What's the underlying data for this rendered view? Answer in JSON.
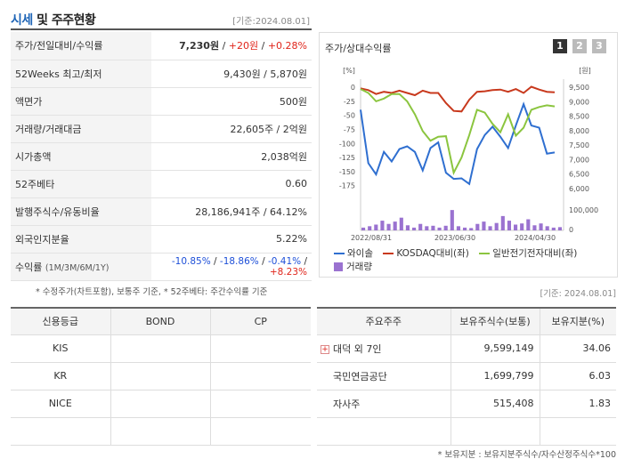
{
  "header": {
    "title_a": "시세",
    "title_b": "및",
    "title_c": "주주현황",
    "date": "[기준:2024.08.01]"
  },
  "summary": {
    "price_label": "주가/전일대비/수익률",
    "price": "7,230원",
    "change": "+20원",
    "change_pct": "+0.28%",
    "week52_label": "52Weeks 최고/최저",
    "week52": "9,430원 / 5,870원",
    "face_label": "액면가",
    "face": "500원",
    "volume_label": "거래량/거래대금",
    "volume": "22,605주 / 2억원",
    "mcap_label": "시가총액",
    "mcap": "2,038억원",
    "beta_label": "52주베타",
    "beta": "0.60",
    "shares_label": "발행주식수/유동비율",
    "shares": "28,186,941주 / 64.12%",
    "foreign_label": "외국인지분율",
    "foreign": "5.22%",
    "return_label": "수익률",
    "return_periods": "(1M/3M/6M/1Y)",
    "r1m": "-10.85%",
    "r3m": "-18.86%",
    "r6m": "-0.41%",
    "r1y": "+8.23%"
  },
  "notes": {
    "note1": "* 수정주가(차트포함), 보통주 기준, * 52주베타: 주간수익률 기준",
    "note2": "[기준: 2024.08.01]",
    "note3": "* 보유지분 : 보유지분주식수/자수산정주식수*100"
  },
  "chart": {
    "title": "주가/상대수익률",
    "pages": [
      "1",
      "2",
      "3"
    ],
    "left_unit": "[%]",
    "right_unit": "[원]",
    "legend": [
      "와이솔",
      "KOSDAQ대비(좌)",
      "일반전기전자대비(좌)",
      "거래량"
    ],
    "colors": {
      "stock": "#2f6fd0",
      "kosdaq": "#c8391d",
      "sector": "#8bc53f",
      "volume": "#9a72d0"
    }
  },
  "chart_data": {
    "type": "line",
    "x_ticks": [
      "2022/08/31",
      "2023/06/30",
      "2024/04/30"
    ],
    "y_left_ticks": [
      "0",
      "-25",
      "-50",
      "-75",
      "-100",
      "-125",
      "-150",
      "-175"
    ],
    "y_left_range": [
      -185,
      5
    ],
    "y_right_ticks": [
      "9,500",
      "9,000",
      "8,500",
      "8,000",
      "7,500",
      "7,000",
      "6,500",
      "6,000"
    ],
    "y_right_range": [
      5900,
      9600
    ],
    "volume_ticks": [
      "100,000",
      "0"
    ],
    "series": [
      {
        "name": "와이솔",
        "values": [
          -40,
          -135,
          -155,
          -115,
          -132,
          -110,
          -105,
          -115,
          -148,
          -108,
          -98,
          -152,
          -163,
          -162,
          -172,
          -110,
          -85,
          -70,
          -88,
          -108,
          -68,
          -30,
          -68,
          -72,
          -118,
          -116
        ]
      },
      {
        "name": "KOSDAQ대비(좌)",
        "values": [
          -2,
          -5,
          -12,
          -8,
          -10,
          -6,
          -10,
          -14,
          -6,
          -10,
          -10,
          -28,
          -42,
          -43,
          -22,
          -8,
          -7,
          -5,
          -4,
          -8,
          -3,
          -10,
          1,
          -4,
          -8,
          -9
        ]
      },
      {
        "name": "일반전기전자대비(좌)",
        "values": [
          -3,
          -10,
          -25,
          -20,
          -12,
          -12,
          -25,
          -48,
          -78,
          -95,
          -88,
          -87,
          -152,
          -125,
          -85,
          -40,
          -45,
          -65,
          -80,
          -48,
          -86,
          -72,
          -40,
          -35,
          -32,
          -34
        ]
      }
    ],
    "volume": [
      12,
      18,
      25,
      42,
      28,
      38,
      55,
      22,
      12,
      28,
      18,
      20,
      12,
      20,
      88,
      18,
      12,
      10,
      28,
      38,
      18,
      32,
      62,
      42,
      25,
      30,
      48,
      22,
      30,
      18,
      12,
      14
    ]
  },
  "credit": {
    "headers": [
      "신용등급",
      "BOND",
      "CP"
    ],
    "rows": [
      [
        "KIS",
        "",
        ""
      ],
      [
        "KR",
        "",
        ""
      ],
      [
        "NICE",
        "",
        ""
      ],
      [
        "",
        "",
        ""
      ]
    ]
  },
  "holders": {
    "headers": [
      "주요주주",
      "보유주식수(보통)",
      "보유지분(%)"
    ],
    "rows": [
      {
        "name": "대덕 외 7인",
        "shares": "9,599,149",
        "pct": "34.06"
      },
      {
        "name": "국민연금공단",
        "shares": "1,699,799",
        "pct": "6.03"
      },
      {
        "name": "자사주",
        "shares": "515,408",
        "pct": "1.83"
      },
      {
        "name": "",
        "shares": "",
        "pct": ""
      }
    ]
  }
}
